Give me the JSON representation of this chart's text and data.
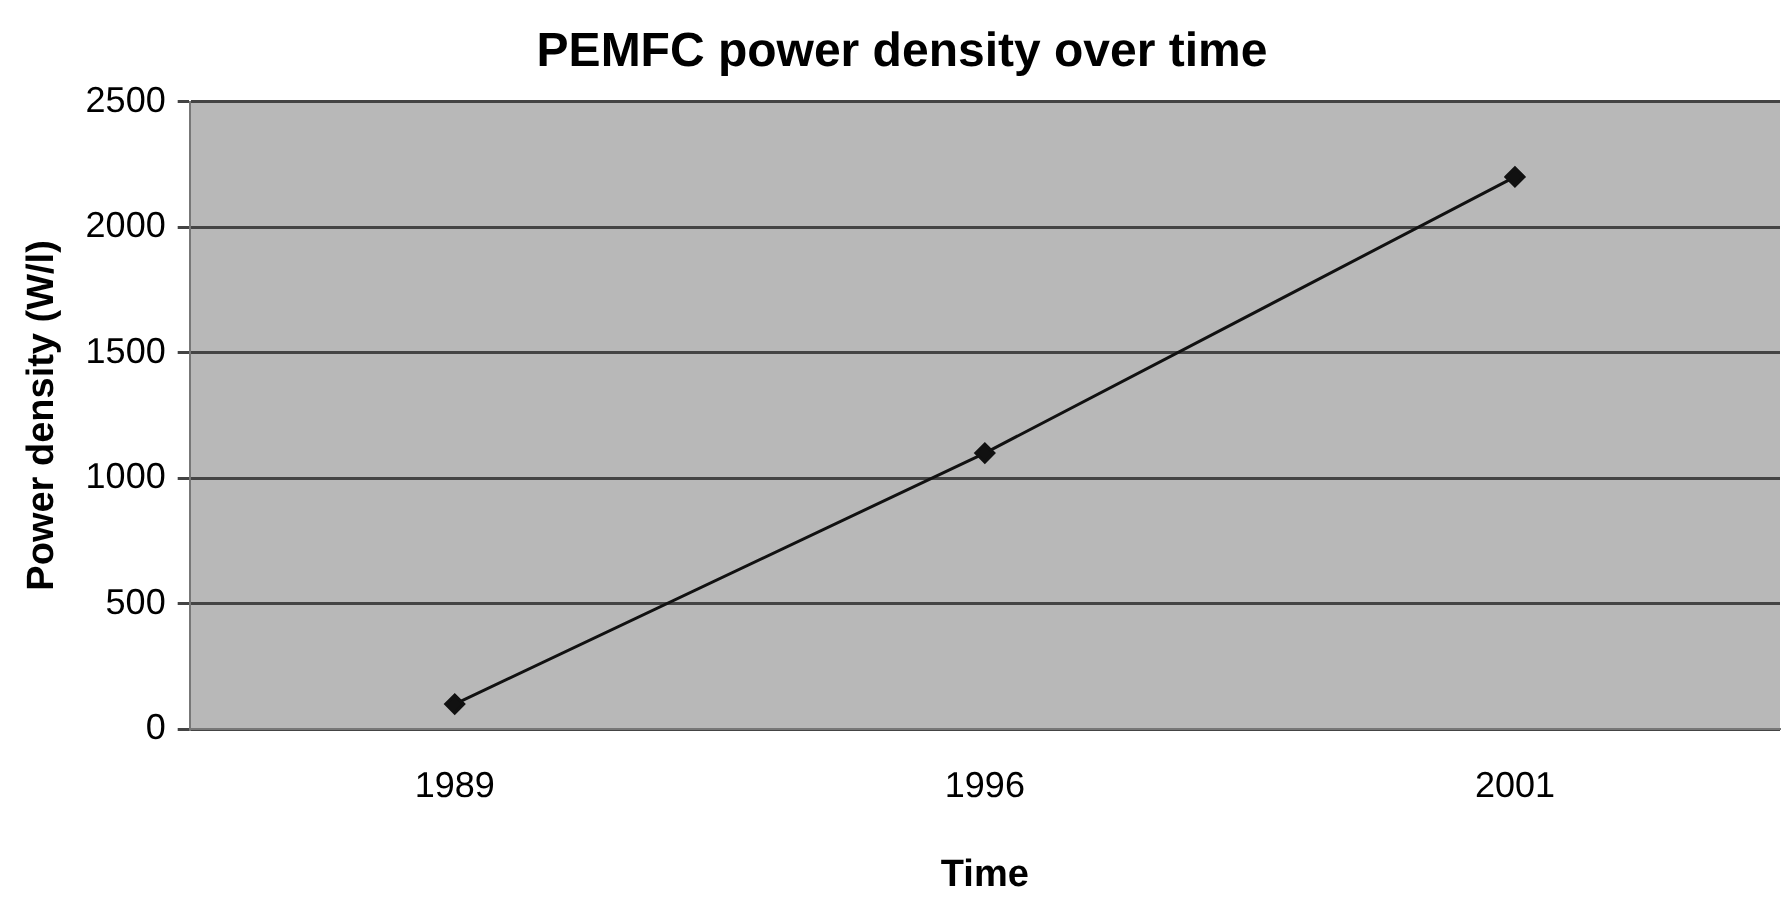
{
  "chart_data": {
    "type": "line",
    "title": "PEMFC power density over time",
    "xlabel": "Time",
    "ylabel": "Power density (W/l)",
    "categories": [
      "1989",
      "1996",
      "2001"
    ],
    "series": [
      {
        "color": "#111111",
        "values": [
          100,
          1100,
          2200
        ]
      }
    ],
    "ylim": [
      0,
      2500
    ],
    "yticks": [
      0,
      500,
      1000,
      1500,
      2000,
      2500
    ],
    "grid": "y",
    "legend": false,
    "marker": "diamond",
    "line_style": "solid"
  }
}
